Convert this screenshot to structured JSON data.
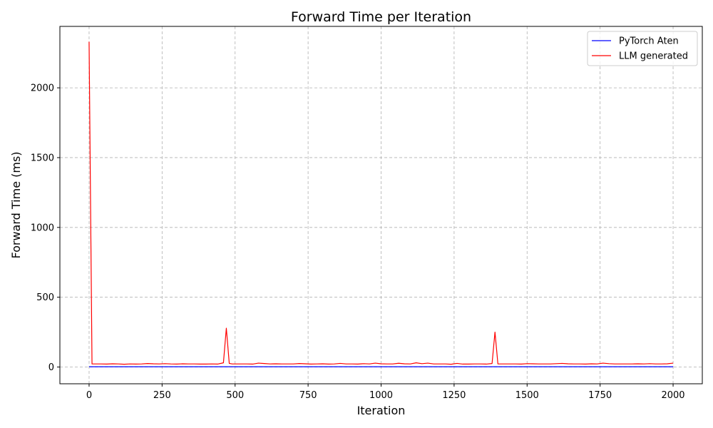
{
  "chart_data": {
    "type": "line",
    "title": "Forward Time per Iteration",
    "xlabel": "Iteration",
    "ylabel": "Forward Time (ms)",
    "xlim": [
      -100,
      2100
    ],
    "ylim": [
      -120,
      2440
    ],
    "xticks": [
      0,
      250,
      500,
      750,
      1000,
      1250,
      1500,
      1750,
      2000
    ],
    "yticks": [
      0,
      500,
      1000,
      1500,
      2000
    ],
    "grid": true,
    "legend_position": "top-right",
    "series": [
      {
        "name": "PyTorch Aten",
        "color": "#0000ff",
        "x": [
          0,
          2000
        ],
        "y": [
          2,
          2
        ]
      },
      {
        "name": "LLM generated",
        "color": "#ff0000",
        "x": [
          0,
          10,
          20,
          40,
          60,
          80,
          100,
          120,
          140,
          160,
          180,
          200,
          220,
          240,
          260,
          280,
          300,
          320,
          340,
          360,
          380,
          400,
          420,
          440,
          460,
          470,
          480,
          490,
          500,
          520,
          540,
          560,
          580,
          600,
          620,
          640,
          660,
          680,
          700,
          720,
          740,
          760,
          780,
          800,
          820,
          840,
          860,
          880,
          900,
          920,
          940,
          960,
          980,
          1000,
          1020,
          1040,
          1060,
          1080,
          1100,
          1120,
          1140,
          1160,
          1180,
          1200,
          1220,
          1240,
          1260,
          1280,
          1300,
          1320,
          1340,
          1360,
          1380,
          1390,
          1400,
          1420,
          1440,
          1460,
          1480,
          1500,
          1520,
          1540,
          1560,
          1580,
          1600,
          1620,
          1640,
          1660,
          1680,
          1700,
          1720,
          1740,
          1760,
          1780,
          1800,
          1820,
          1840,
          1860,
          1880,
          1900,
          1920,
          1940,
          1960,
          1980,
          2000
        ],
        "y": [
          2330,
          22,
          22,
          22,
          21,
          23,
          22,
          20,
          22,
          21,
          22,
          25,
          23,
          22,
          24,
          22,
          21,
          23,
          22,
          22,
          21,
          21,
          22,
          21,
          30,
          278,
          26,
          22,
          22,
          22,
          22,
          21,
          28,
          25,
          22,
          23,
          22,
          22,
          22,
          25,
          23,
          21,
          22,
          23,
          21,
          22,
          26,
          22,
          22,
          21,
          24,
          22,
          28,
          23,
          22,
          22,
          27,
          23,
          22,
          30,
          24,
          28,
          22,
          22,
          22,
          20,
          26,
          21,
          21,
          22,
          22,
          21,
          25,
          250,
          22,
          22,
          22,
          22,
          21,
          24,
          23,
          22,
          22,
          22,
          24,
          26,
          23,
          22,
          22,
          21,
          23,
          22,
          28,
          24,
          22,
          22,
          22,
          22,
          23,
          22,
          24,
          22,
          22,
          23,
          28
        ]
      }
    ]
  }
}
